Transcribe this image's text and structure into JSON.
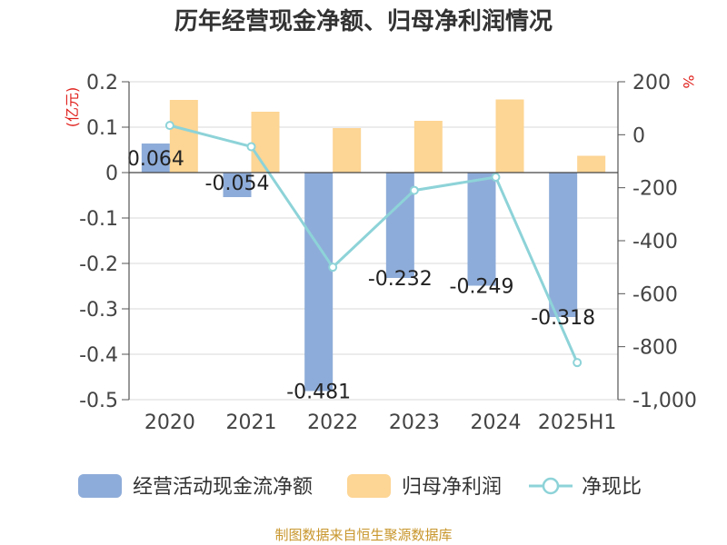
{
  "chart_data": {
    "type": "bar",
    "title": "历年经营现金净额、归母净利润情况",
    "left_unit": "(亿元)",
    "right_unit": "%",
    "categories": [
      "2020",
      "2021",
      "2022",
      "2023",
      "2024",
      "2025H1"
    ],
    "series": [
      {
        "name": "经营活动现金流净额",
        "type": "bar",
        "axis": "left",
        "values": [
          0.064,
          -0.054,
          -0.481,
          -0.232,
          -0.249,
          -0.318
        ],
        "labels": [
          "0.064",
          "-0.054",
          "-0.481",
          "-0.232",
          "-0.249",
          "-0.318"
        ],
        "color": "#8eacd9"
      },
      {
        "name": "归母净利润",
        "type": "bar",
        "axis": "left",
        "values": [
          0.16,
          0.134,
          0.098,
          0.114,
          0.161,
          0.037
        ],
        "color": "#fdd594"
      },
      {
        "name": "净现比",
        "type": "line",
        "axis": "right",
        "values": [
          35,
          -45,
          -500,
          -210,
          -160,
          -860
        ],
        "color": "#8dd3d8"
      }
    ],
    "left_axis": {
      "ylim": [
        -0.5,
        0.2
      ],
      "ticks": [
        "0.2",
        "0.1",
        "0",
        "-0.1",
        "-0.2",
        "-0.3",
        "-0.4",
        "-0.5"
      ]
    },
    "right_axis": {
      "ylim": [
        -1000,
        200
      ],
      "ticks": [
        "200",
        "0",
        "-200",
        "-400",
        "-600",
        "-800",
        "-1,000"
      ]
    },
    "grid": true,
    "legend_position": "bottom",
    "source": "制图数据来自恒生聚源数据库",
    "source_color": "#c8962c",
    "unit_color": "#e0221e"
  }
}
